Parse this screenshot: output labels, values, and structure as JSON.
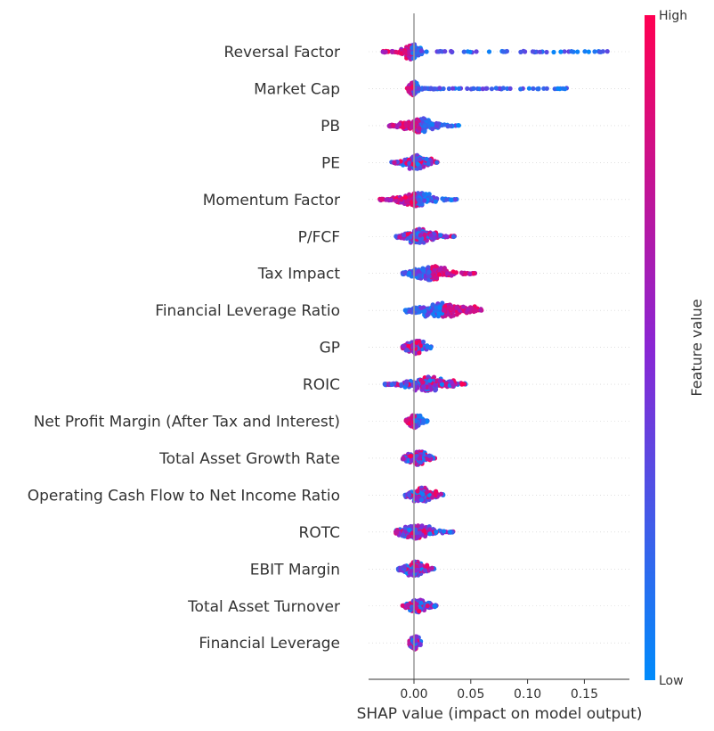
{
  "chart_data": {
    "type": "scatter",
    "subtype": "shap-beeswarm-summary",
    "xlabel": "SHAP value (impact on model output)",
    "x_ticks": [
      "0.00",
      "0.05",
      "0.10",
      "0.15"
    ],
    "x_tick_values": [
      0.0,
      0.05,
      0.1,
      0.15
    ],
    "xlim": [
      -0.04,
      0.19
    ],
    "grid": false,
    "colorbar": {
      "label": "Feature value",
      "high_label": "High",
      "low_label": "Low",
      "high_color": "#ff0052",
      "mid_color": "#8a26d4",
      "low_color": "#008bfb"
    },
    "features": [
      {
        "name": "Reversal Factor",
        "min": -0.028,
        "max": 0.182,
        "core": [
          -0.012,
          0.008
        ],
        "high_side": "left",
        "density": "high"
      },
      {
        "name": "Market Cap",
        "min": -0.006,
        "max": 0.136,
        "core": [
          -0.005,
          0.004
        ],
        "high_side": "left",
        "density": "high"
      },
      {
        "name": "PB",
        "min": -0.022,
        "max": 0.04,
        "core": [
          -0.012,
          0.022
        ],
        "high_side": "left",
        "density": "high"
      },
      {
        "name": "PE",
        "min": -0.02,
        "max": 0.021,
        "core": [
          -0.01,
          0.016
        ],
        "high_side": "mixed",
        "density": "med"
      },
      {
        "name": "Momentum Factor",
        "min": -0.03,
        "max": 0.04,
        "core": [
          -0.015,
          0.02
        ],
        "high_side": "left",
        "density": "high"
      },
      {
        "name": "P/FCF",
        "min": -0.016,
        "max": 0.036,
        "core": [
          -0.01,
          0.02
        ],
        "high_side": "mixed",
        "density": "high"
      },
      {
        "name": "Tax Impact",
        "min": -0.01,
        "max": 0.056,
        "core": [
          -0.004,
          0.034
        ],
        "high_side": "right",
        "density": "high"
      },
      {
        "name": "Financial Leverage Ratio",
        "min": -0.008,
        "max": 0.06,
        "core": [
          -0.004,
          0.055
        ],
        "high_side": "right",
        "density": "high"
      },
      {
        "name": "GP",
        "min": -0.01,
        "max": 0.016,
        "core": [
          -0.008,
          0.012
        ],
        "high_side": "mixed",
        "density": "med"
      },
      {
        "name": "ROIC",
        "min": -0.026,
        "max": 0.046,
        "core": [
          -0.01,
          0.036
        ],
        "high_side": "mixed",
        "density": "high"
      },
      {
        "name": "Net Profit Margin (After Tax and Interest)",
        "min": -0.007,
        "max": 0.012,
        "core": [
          -0.006,
          0.008
        ],
        "high_side": "left",
        "density": "med"
      },
      {
        "name": "Total Asset Growth Rate",
        "min": -0.01,
        "max": 0.02,
        "core": [
          -0.008,
          0.016
        ],
        "high_side": "mixed",
        "density": "med"
      },
      {
        "name": "Operating Cash Flow to Net Income Ratio",
        "min": -0.008,
        "max": 0.026,
        "core": [
          -0.006,
          0.02
        ],
        "high_side": "mixed",
        "density": "med"
      },
      {
        "name": "ROTC",
        "min": -0.016,
        "max": 0.035,
        "core": [
          -0.015,
          0.02
        ],
        "high_side": "mixed",
        "density": "high"
      },
      {
        "name": "EBIT Margin",
        "min": -0.014,
        "max": 0.018,
        "core": [
          -0.01,
          0.012
        ],
        "high_side": "mixed",
        "density": "high"
      },
      {
        "name": "Total Asset Turnover",
        "min": -0.01,
        "max": 0.02,
        "core": [
          -0.008,
          0.016
        ],
        "high_side": "mixed",
        "density": "med"
      },
      {
        "name": "Financial Leverage",
        "min": -0.004,
        "max": 0.008,
        "core": [
          -0.004,
          0.006
        ],
        "high_side": "mixed",
        "density": "low"
      }
    ]
  }
}
